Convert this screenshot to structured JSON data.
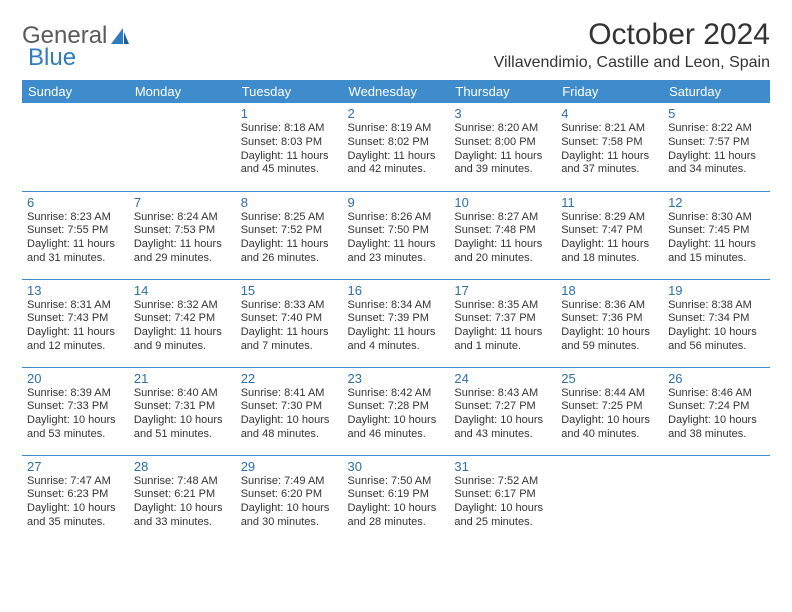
{
  "brand": {
    "part1": "General",
    "part2": "Blue"
  },
  "title": "October 2024",
  "location": "Villavendimio, Castille and Leon, Spain",
  "colors": {
    "header_bg": "#3e8ccc",
    "header_text": "#ffffff",
    "daynum": "#2f6fa8",
    "border": "#3e8ccc",
    "body_text": "#333333",
    "logo_gray": "#5a5a5a",
    "logo_blue": "#2f7bbf"
  },
  "weekdays": [
    "Sunday",
    "Monday",
    "Tuesday",
    "Wednesday",
    "Thursday",
    "Friday",
    "Saturday"
  ],
  "weeks": [
    [
      null,
      null,
      {
        "n": "1",
        "sr": "Sunrise: 8:18 AM",
        "ss": "Sunset: 8:03 PM",
        "dl": "Daylight: 11 hours and 45 minutes."
      },
      {
        "n": "2",
        "sr": "Sunrise: 8:19 AM",
        "ss": "Sunset: 8:02 PM",
        "dl": "Daylight: 11 hours and 42 minutes."
      },
      {
        "n": "3",
        "sr": "Sunrise: 8:20 AM",
        "ss": "Sunset: 8:00 PM",
        "dl": "Daylight: 11 hours and 39 minutes."
      },
      {
        "n": "4",
        "sr": "Sunrise: 8:21 AM",
        "ss": "Sunset: 7:58 PM",
        "dl": "Daylight: 11 hours and 37 minutes."
      },
      {
        "n": "5",
        "sr": "Sunrise: 8:22 AM",
        "ss": "Sunset: 7:57 PM",
        "dl": "Daylight: 11 hours and 34 minutes."
      }
    ],
    [
      {
        "n": "6",
        "sr": "Sunrise: 8:23 AM",
        "ss": "Sunset: 7:55 PM",
        "dl": "Daylight: 11 hours and 31 minutes."
      },
      {
        "n": "7",
        "sr": "Sunrise: 8:24 AM",
        "ss": "Sunset: 7:53 PM",
        "dl": "Daylight: 11 hours and 29 minutes."
      },
      {
        "n": "8",
        "sr": "Sunrise: 8:25 AM",
        "ss": "Sunset: 7:52 PM",
        "dl": "Daylight: 11 hours and 26 minutes."
      },
      {
        "n": "9",
        "sr": "Sunrise: 8:26 AM",
        "ss": "Sunset: 7:50 PM",
        "dl": "Daylight: 11 hours and 23 minutes."
      },
      {
        "n": "10",
        "sr": "Sunrise: 8:27 AM",
        "ss": "Sunset: 7:48 PM",
        "dl": "Daylight: 11 hours and 20 minutes."
      },
      {
        "n": "11",
        "sr": "Sunrise: 8:29 AM",
        "ss": "Sunset: 7:47 PM",
        "dl": "Daylight: 11 hours and 18 minutes."
      },
      {
        "n": "12",
        "sr": "Sunrise: 8:30 AM",
        "ss": "Sunset: 7:45 PM",
        "dl": "Daylight: 11 hours and 15 minutes."
      }
    ],
    [
      {
        "n": "13",
        "sr": "Sunrise: 8:31 AM",
        "ss": "Sunset: 7:43 PM",
        "dl": "Daylight: 11 hours and 12 minutes."
      },
      {
        "n": "14",
        "sr": "Sunrise: 8:32 AM",
        "ss": "Sunset: 7:42 PM",
        "dl": "Daylight: 11 hours and 9 minutes."
      },
      {
        "n": "15",
        "sr": "Sunrise: 8:33 AM",
        "ss": "Sunset: 7:40 PM",
        "dl": "Daylight: 11 hours and 7 minutes."
      },
      {
        "n": "16",
        "sr": "Sunrise: 8:34 AM",
        "ss": "Sunset: 7:39 PM",
        "dl": "Daylight: 11 hours and 4 minutes."
      },
      {
        "n": "17",
        "sr": "Sunrise: 8:35 AM",
        "ss": "Sunset: 7:37 PM",
        "dl": "Daylight: 11 hours and 1 minute."
      },
      {
        "n": "18",
        "sr": "Sunrise: 8:36 AM",
        "ss": "Sunset: 7:36 PM",
        "dl": "Daylight: 10 hours and 59 minutes."
      },
      {
        "n": "19",
        "sr": "Sunrise: 8:38 AM",
        "ss": "Sunset: 7:34 PM",
        "dl": "Daylight: 10 hours and 56 minutes."
      }
    ],
    [
      {
        "n": "20",
        "sr": "Sunrise: 8:39 AM",
        "ss": "Sunset: 7:33 PM",
        "dl": "Daylight: 10 hours and 53 minutes."
      },
      {
        "n": "21",
        "sr": "Sunrise: 8:40 AM",
        "ss": "Sunset: 7:31 PM",
        "dl": "Daylight: 10 hours and 51 minutes."
      },
      {
        "n": "22",
        "sr": "Sunrise: 8:41 AM",
        "ss": "Sunset: 7:30 PM",
        "dl": "Daylight: 10 hours and 48 minutes."
      },
      {
        "n": "23",
        "sr": "Sunrise: 8:42 AM",
        "ss": "Sunset: 7:28 PM",
        "dl": "Daylight: 10 hours and 46 minutes."
      },
      {
        "n": "24",
        "sr": "Sunrise: 8:43 AM",
        "ss": "Sunset: 7:27 PM",
        "dl": "Daylight: 10 hours and 43 minutes."
      },
      {
        "n": "25",
        "sr": "Sunrise: 8:44 AM",
        "ss": "Sunset: 7:25 PM",
        "dl": "Daylight: 10 hours and 40 minutes."
      },
      {
        "n": "26",
        "sr": "Sunrise: 8:46 AM",
        "ss": "Sunset: 7:24 PM",
        "dl": "Daylight: 10 hours and 38 minutes."
      }
    ],
    [
      {
        "n": "27",
        "sr": "Sunrise: 7:47 AM",
        "ss": "Sunset: 6:23 PM",
        "dl": "Daylight: 10 hours and 35 minutes."
      },
      {
        "n": "28",
        "sr": "Sunrise: 7:48 AM",
        "ss": "Sunset: 6:21 PM",
        "dl": "Daylight: 10 hours and 33 minutes."
      },
      {
        "n": "29",
        "sr": "Sunrise: 7:49 AM",
        "ss": "Sunset: 6:20 PM",
        "dl": "Daylight: 10 hours and 30 minutes."
      },
      {
        "n": "30",
        "sr": "Sunrise: 7:50 AM",
        "ss": "Sunset: 6:19 PM",
        "dl": "Daylight: 10 hours and 28 minutes."
      },
      {
        "n": "31",
        "sr": "Sunrise: 7:52 AM",
        "ss": "Sunset: 6:17 PM",
        "dl": "Daylight: 10 hours and 25 minutes."
      },
      null,
      null
    ]
  ]
}
